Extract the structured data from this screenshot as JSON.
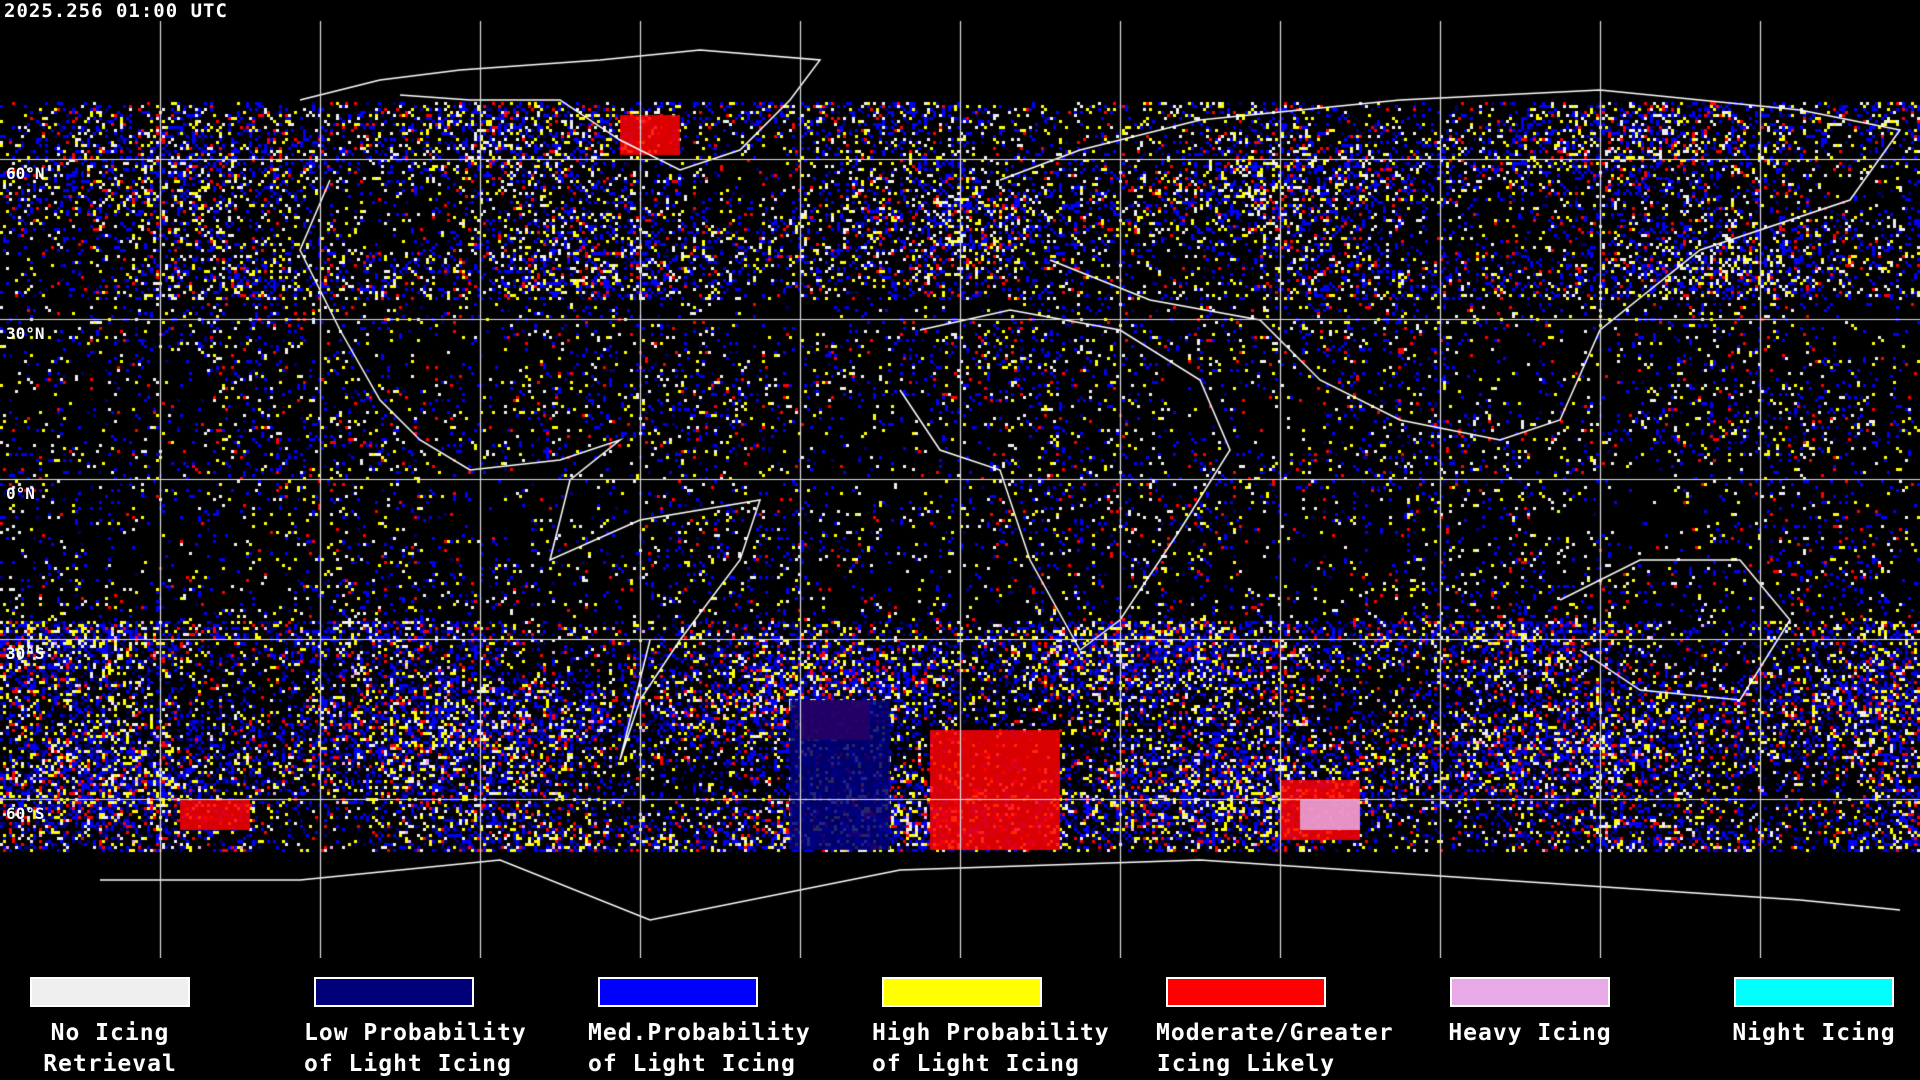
{
  "header": {
    "timestamp": "2025.256 01:00 UTC"
  },
  "map": {
    "latitude_labels": [
      "60°N",
      "30°N",
      "0°N",
      "30°S",
      "60°S"
    ],
    "grid": true,
    "projection": "equirectangular"
  },
  "legend": [
    {
      "line1": "No Icing",
      "line2": "Retrieval",
      "color": "#efefef"
    },
    {
      "line1": "Low Probability",
      "line2": "of Light Icing",
      "color": "#000078"
    },
    {
      "line1": "Med.Probability",
      "line2": "of Light Icing",
      "color": "#0000ff"
    },
    {
      "line1": "High Probability",
      "line2": "of Light Icing",
      "color": "#ffff00"
    },
    {
      "line1": "Moderate/Greater",
      "line2": "Icing Likely",
      "color": "#ff0000"
    },
    {
      "line1": "Heavy Icing",
      "line2": "",
      "color": "#e8aae6"
    },
    {
      "line1": "Night Icing",
      "line2": "",
      "color": "#00ffff"
    }
  ]
}
